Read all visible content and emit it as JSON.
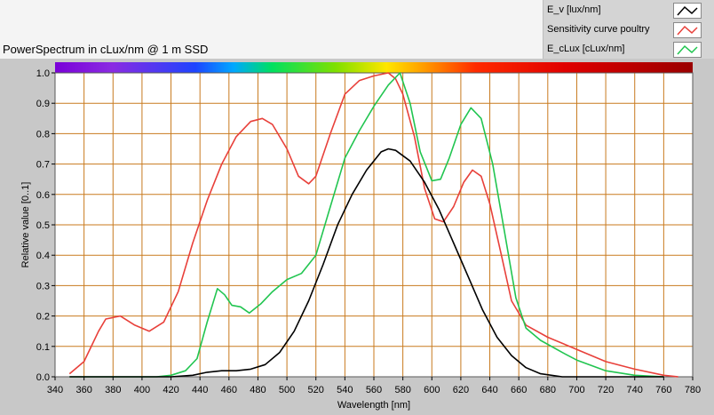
{
  "chart_data": {
    "type": "line",
    "title": "PowerSpectrum in cLux/nm @ 1 m SSD",
    "xlabel": "Wavelength [nm]",
    "ylabel": "Relative value [0..1]",
    "xlim": [
      340,
      780
    ],
    "ylim": [
      0,
      1
    ],
    "x_ticks": [
      "340",
      "360",
      "380",
      "400",
      "420",
      "440",
      "460",
      "480",
      "500",
      "520",
      "540",
      "560",
      "580",
      "600",
      "620",
      "640",
      "660",
      "680",
      "700",
      "720",
      "740",
      "760",
      "780"
    ],
    "y_ticks": [
      "0.0",
      "0.1",
      "0.2",
      "0.3",
      "0.4",
      "0.5",
      "0.6",
      "0.7",
      "0.8",
      "0.9",
      "1.0"
    ],
    "grid": true,
    "legend_position": "top-right",
    "colors": {
      "grid": "#c87a1e",
      "plot_background": "#ffffff",
      "panel_background": "#c8c8c8"
    },
    "series": [
      {
        "name": "E_v [lux/nm]",
        "color": "#000000",
        "points": [
          [
            350,
            0.0
          ],
          [
            380,
            0.0
          ],
          [
            420,
            0.0
          ],
          [
            435,
            0.005
          ],
          [
            445,
            0.015
          ],
          [
            455,
            0.02
          ],
          [
            465,
            0.02
          ],
          [
            475,
            0.025
          ],
          [
            485,
            0.04
          ],
          [
            495,
            0.08
          ],
          [
            505,
            0.15
          ],
          [
            515,
            0.25
          ],
          [
            525,
            0.37
          ],
          [
            535,
            0.5
          ],
          [
            545,
            0.6
          ],
          [
            555,
            0.68
          ],
          [
            565,
            0.74
          ],
          [
            570,
            0.75
          ],
          [
            575,
            0.745
          ],
          [
            585,
            0.71
          ],
          [
            595,
            0.64
          ],
          [
            605,
            0.55
          ],
          [
            615,
            0.44
          ],
          [
            625,
            0.33
          ],
          [
            635,
            0.22
          ],
          [
            645,
            0.13
          ],
          [
            655,
            0.07
          ],
          [
            665,
            0.03
          ],
          [
            675,
            0.01
          ],
          [
            690,
            0.0
          ],
          [
            720,
            0.0
          ],
          [
            760,
            0.0
          ]
        ]
      },
      {
        "name": "Sensitivity curve poultry",
        "color": "#e8403a",
        "points": [
          [
            350,
            0.01
          ],
          [
            360,
            0.05
          ],
          [
            370,
            0.15
          ],
          [
            375,
            0.19
          ],
          [
            385,
            0.2
          ],
          [
            395,
            0.17
          ],
          [
            405,
            0.15
          ],
          [
            415,
            0.18
          ],
          [
            425,
            0.28
          ],
          [
            435,
            0.44
          ],
          [
            445,
            0.58
          ],
          [
            455,
            0.7
          ],
          [
            465,
            0.79
          ],
          [
            475,
            0.84
          ],
          [
            483,
            0.85
          ],
          [
            490,
            0.83
          ],
          [
            500,
            0.75
          ],
          [
            508,
            0.66
          ],
          [
            515,
            0.635
          ],
          [
            520,
            0.66
          ],
          [
            530,
            0.8
          ],
          [
            540,
            0.93
          ],
          [
            550,
            0.975
          ],
          [
            560,
            0.99
          ],
          [
            570,
            1.0
          ],
          [
            575,
            0.98
          ],
          [
            580,
            0.93
          ],
          [
            588,
            0.79
          ],
          [
            595,
            0.62
          ],
          [
            602,
            0.52
          ],
          [
            608,
            0.51
          ],
          [
            615,
            0.56
          ],
          [
            622,
            0.64
          ],
          [
            628,
            0.68
          ],
          [
            634,
            0.66
          ],
          [
            640,
            0.57
          ],
          [
            648,
            0.4
          ],
          [
            655,
            0.25
          ],
          [
            665,
            0.17
          ],
          [
            680,
            0.13
          ],
          [
            700,
            0.09
          ],
          [
            720,
            0.05
          ],
          [
            740,
            0.025
          ],
          [
            760,
            0.005
          ],
          [
            770,
            0.0
          ]
        ]
      },
      {
        "name": "E_cLux [cLux/nm]",
        "color": "#21c550",
        "points": [
          [
            350,
            0.0
          ],
          [
            410,
            0.0
          ],
          [
            420,
            0.005
          ],
          [
            430,
            0.02
          ],
          [
            438,
            0.06
          ],
          [
            445,
            0.18
          ],
          [
            452,
            0.29
          ],
          [
            457,
            0.27
          ],
          [
            462,
            0.235
          ],
          [
            468,
            0.23
          ],
          [
            474,
            0.21
          ],
          [
            482,
            0.24
          ],
          [
            490,
            0.28
          ],
          [
            500,
            0.32
          ],
          [
            510,
            0.34
          ],
          [
            520,
            0.4
          ],
          [
            530,
            0.56
          ],
          [
            540,
            0.72
          ],
          [
            550,
            0.81
          ],
          [
            560,
            0.89
          ],
          [
            570,
            0.96
          ],
          [
            578,
            1.0
          ],
          [
            585,
            0.9
          ],
          [
            592,
            0.74
          ],
          [
            600,
            0.645
          ],
          [
            606,
            0.65
          ],
          [
            612,
            0.72
          ],
          [
            620,
            0.83
          ],
          [
            627,
            0.885
          ],
          [
            634,
            0.85
          ],
          [
            642,
            0.7
          ],
          [
            650,
            0.48
          ],
          [
            658,
            0.26
          ],
          [
            665,
            0.16
          ],
          [
            675,
            0.12
          ],
          [
            690,
            0.08
          ],
          [
            700,
            0.055
          ],
          [
            720,
            0.02
          ],
          [
            740,
            0.005
          ],
          [
            760,
            0.0
          ]
        ]
      }
    ]
  },
  "legend": {
    "items": [
      {
        "label": "E_v [lux/nm]",
        "color": "#000000"
      },
      {
        "label": "Sensitivity curve poultry",
        "color": "#e8403a"
      },
      {
        "label": "E_cLux [cLux/nm]",
        "color": "#21c550"
      }
    ]
  }
}
